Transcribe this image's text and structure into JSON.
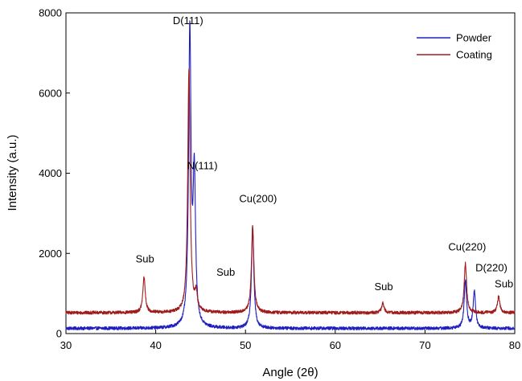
{
  "chart_data": {
    "type": "line",
    "xlabel": "Angle (2θ)",
    "ylabel": "Intensity (a.u.)",
    "xlim": [
      30,
      80
    ],
    "ylim": [
      0,
      8000
    ],
    "x_ticks": [
      30,
      40,
      50,
      60,
      70,
      80
    ],
    "y_ticks": [
      0,
      2000,
      4000,
      6000,
      8000
    ],
    "grid": false,
    "legend_position": "top-right",
    "series": [
      {
        "name": "Powder",
        "color": "#1f1fbf",
        "baseline": 130,
        "peaks": [
          {
            "x": 43.8,
            "y": 7500
          },
          {
            "x": 44.3,
            "y": 3800
          },
          {
            "x": 50.8,
            "y": 2600
          },
          {
            "x": 74.5,
            "y": 1300
          },
          {
            "x": 75.5,
            "y": 1050
          }
        ]
      },
      {
        "name": "Coating",
        "color": "#a01c1c",
        "baseline": 520,
        "peaks": [
          {
            "x": 38.7,
            "y": 1400
          },
          {
            "x": 43.7,
            "y": 6600
          },
          {
            "x": 44.5,
            "y": 950
          },
          {
            "x": 50.8,
            "y": 2700
          },
          {
            "x": 65.3,
            "y": 760
          },
          {
            "x": 74.5,
            "y": 1750
          },
          {
            "x": 78.2,
            "y": 920
          }
        ]
      }
    ],
    "annotations": [
      {
        "text": "D(111)",
        "x": 43.6,
        "y": 7720
      },
      {
        "text": "N(111)",
        "x": 45.2,
        "y": 4100
      },
      {
        "text": "Cu(200)",
        "x": 51.4,
        "y": 3280
      },
      {
        "text": "Sub",
        "x": 38.8,
        "y": 1770
      },
      {
        "text": "Sub",
        "x": 47.8,
        "y": 1440
      },
      {
        "text": "Sub",
        "x": 65.4,
        "y": 1080
      },
      {
        "text": "Cu(220)",
        "x": 74.7,
        "y": 2080
      },
      {
        "text": "D(220)",
        "x": 77.4,
        "y": 1550
      },
      {
        "text": "Sub",
        "x": 78.8,
        "y": 1150
      }
    ]
  }
}
